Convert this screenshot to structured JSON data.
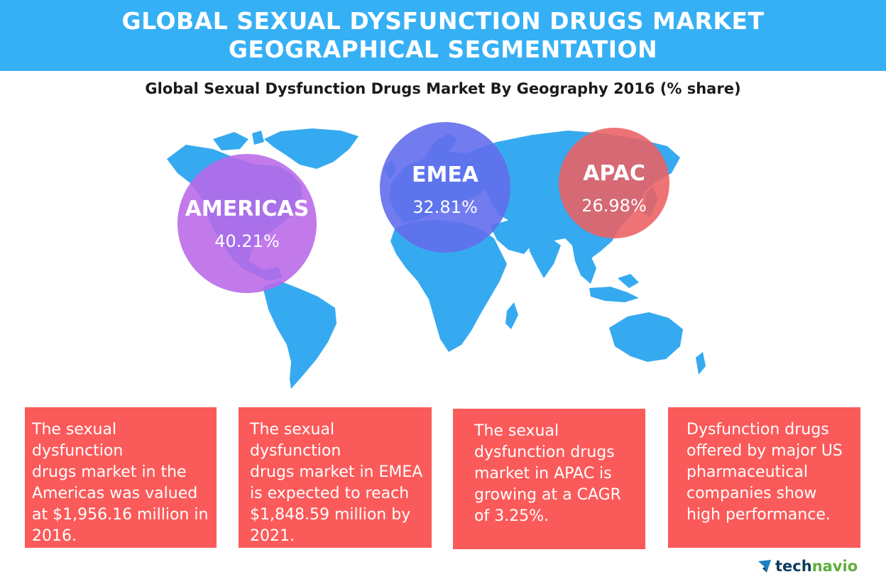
{
  "header": {
    "line1": "GLOBAL SEXUAL DYSFUNCTION DRUGS MARKET",
    "line2": "GEOGRAPHICAL SEGMENTATION"
  },
  "subtitle": "Global Sexual Dysfunction Drugs Market By Geography 2016 (% share)",
  "colors": {
    "header": "#36b0f5",
    "map": "#36aaf0",
    "americas": "#ba68e8",
    "emea": "#636eec",
    "apac": "#ec6062",
    "cards": "#fb5a5a",
    "logo_dark": "#0d3b5c",
    "logo_green": "#5fae3a"
  },
  "regions": [
    {
      "name": "AMERICAS",
      "share": "40.21%"
    },
    {
      "name": "EMEA",
      "share": "32.81%"
    },
    {
      "name": "APAC",
      "share": "26.98%"
    }
  ],
  "cards": [
    [
      "The sexual dysfunction",
      "drugs market in the",
      "Americas was valued",
      "at $1,956.16 million in",
      "2016."
    ],
    [
      "The sexual dysfunction",
      "drugs market in EMEA",
      "is expected to reach",
      "$1,848.59 million by",
      "2021."
    ],
    [
      "The sexual",
      "dysfunction drugs",
      "market in APAC is",
      "growing at a CAGR",
      "of 3.25%."
    ],
    [
      "Dysfunction drugs",
      "offered by major US",
      "pharmaceutical",
      "companies show",
      "high performance."
    ]
  ],
  "logo": {
    "part1": "tech",
    "part2": "navio",
    "icon": "technavio-arrow-icon"
  }
}
